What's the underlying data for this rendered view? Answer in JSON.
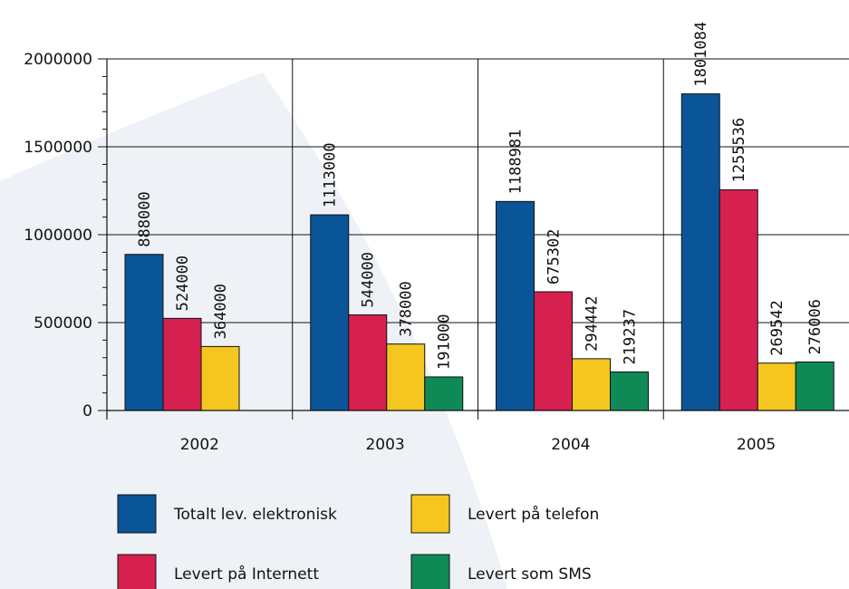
{
  "chart_data": {
    "type": "bar",
    "categories": [
      "2002",
      "2003",
      "2004",
      "2005"
    ],
    "series": [
      {
        "name": "Totalt lev. elektronisk",
        "color": "#0a5597",
        "values": [
          888000,
          1113000,
          1188981,
          1801084
        ]
      },
      {
        "name": "Levert på Internett",
        "color": "#d6204f",
        "values": [
          524000,
          544000,
          675302,
          1255536
        ]
      },
      {
        "name": "Levert på telefon",
        "color": "#f5c61f",
        "values": [
          364000,
          378000,
          294442,
          269542
        ]
      },
      {
        "name": "Levert som SMS",
        "color": "#0f8a57",
        "values": [
          null,
          191000,
          219237,
          276006
        ]
      }
    ],
    "data_labels": [
      [
        "888000",
        "1113000",
        "1188981",
        "1801084"
      ],
      [
        "524000",
        "544000",
        "675302",
        "1255536"
      ],
      [
        "364000",
        "378000",
        "294442",
        "269542"
      ],
      [
        "",
        "191000",
        "219237",
        "276006"
      ]
    ],
    "y_ticks": [
      0,
      500000,
      1000000,
      1500000,
      2000000
    ],
    "y_tick_labels": [
      "0",
      "500000",
      "1000000",
      "1500000",
      "2000000"
    ],
    "ylim": [
      0,
      2000000
    ],
    "grid": true,
    "legend_position": "bottom",
    "title": "",
    "xlabel": "",
    "ylabel": ""
  }
}
